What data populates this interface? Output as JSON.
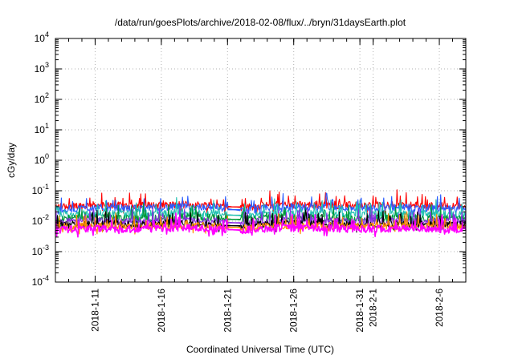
{
  "chart_data": {
    "type": "line",
    "title": "/data/run/goesPlots/archive/2018-02-08/flux/../bryn/31daysEarth.plot",
    "xlabel": "Coordinated Universal Time (UTC)",
    "ylabel": "cGy/day",
    "yscale": "log",
    "ylim": [
      0.0001,
      10000
    ],
    "xlim": [
      "2018-01-08",
      "2018-02-08"
    ],
    "grid": true,
    "y_ticks": [
      {
        "base": "10",
        "exp": "-4",
        "value": 0.0001
      },
      {
        "base": "10",
        "exp": "-3",
        "value": 0.001
      },
      {
        "base": "10",
        "exp": "-2",
        "value": 0.01
      },
      {
        "base": "10",
        "exp": "-1",
        "value": 0.1
      },
      {
        "base": "10",
        "exp": "0",
        "value": 1
      },
      {
        "base": "10",
        "exp": "1",
        "value": 10
      },
      {
        "base": "10",
        "exp": "2",
        "value": 100
      },
      {
        "base": "10",
        "exp": "3",
        "value": 1000
      },
      {
        "base": "10",
        "exp": "4",
        "value": 10000
      }
    ],
    "x_ticks": [
      {
        "label": "2018-1-11",
        "date": "2018-01-11"
      },
      {
        "label": "2018-1-16",
        "date": "2018-01-16"
      },
      {
        "label": "2018-1-21",
        "date": "2018-01-21"
      },
      {
        "label": "2018-1-26",
        "date": "2018-01-26"
      },
      {
        "label": "2018-1-31",
        "date": "2018-01-31"
      },
      {
        "label": "2018-2-1",
        "date": "2018-02-01"
      },
      {
        "label": "2018-2-6",
        "date": "2018-02-06"
      }
    ],
    "data_gap": [
      "2018-01-21",
      "2018-01-22"
    ],
    "series": [
      {
        "color": "#ff0000",
        "x": [
          "2018-01-08",
          "2018-01-11",
          "2018-01-14",
          "2018-01-17",
          "2018-01-20",
          "2018-01-22",
          "2018-01-25",
          "2018-01-28",
          "2018-01-31",
          "2018-02-03",
          "2018-02-06",
          "2018-02-08"
        ],
        "y": [
          0.03,
          0.034,
          0.032,
          0.035,
          0.034,
          0.028,
          0.036,
          0.034,
          0.033,
          0.034,
          0.032,
          0.03
        ]
      },
      {
        "color": "#2a5cff",
        "x": [
          "2018-01-08",
          "2018-01-11",
          "2018-01-14",
          "2018-01-17",
          "2018-01-20",
          "2018-01-22",
          "2018-01-25",
          "2018-01-28",
          "2018-01-31",
          "2018-02-03",
          "2018-02-06",
          "2018-02-08"
        ],
        "y": [
          0.024,
          0.028,
          0.026,
          0.029,
          0.03,
          0.022,
          0.03,
          0.028,
          0.027,
          0.028,
          0.026,
          0.024
        ]
      },
      {
        "color": "#20c0b0",
        "x": [
          "2018-01-08",
          "2018-01-11",
          "2018-01-14",
          "2018-01-17",
          "2018-01-20",
          "2018-01-22",
          "2018-01-25",
          "2018-01-28",
          "2018-01-31",
          "2018-02-03",
          "2018-02-06",
          "2018-02-08"
        ],
        "y": [
          0.016,
          0.018,
          0.017,
          0.019,
          0.018,
          0.015,
          0.019,
          0.018,
          0.017,
          0.018,
          0.017,
          0.016
        ]
      },
      {
        "color": "#009a3a",
        "x": [
          "2018-01-08",
          "2018-01-11",
          "2018-01-14",
          "2018-01-17",
          "2018-01-20",
          "2018-01-22",
          "2018-01-25",
          "2018-01-28",
          "2018-01-31",
          "2018-02-03",
          "2018-02-06",
          "2018-02-08"
        ],
        "y": [
          0.012,
          0.013,
          0.012,
          0.014,
          0.013,
          0.011,
          0.014,
          0.013,
          0.012,
          0.013,
          0.012,
          0.012
        ]
      },
      {
        "color": "#8a2be2",
        "x": [
          "2018-01-08",
          "2018-01-11",
          "2018-01-14",
          "2018-01-17",
          "2018-01-20",
          "2018-01-22",
          "2018-01-25",
          "2018-01-28",
          "2018-01-31",
          "2018-02-03",
          "2018-02-06",
          "2018-02-08"
        ],
        "y": [
          0.0095,
          0.01,
          0.0098,
          0.011,
          0.01,
          0.0085,
          0.011,
          0.01,
          0.0098,
          0.01,
          0.0095,
          0.0094
        ]
      },
      {
        "color": "#000000",
        "x": [
          "2018-01-08",
          "2018-01-11",
          "2018-01-14",
          "2018-01-17",
          "2018-01-20",
          "2018-01-22",
          "2018-01-25",
          "2018-01-28",
          "2018-01-31",
          "2018-02-03",
          "2018-02-06",
          "2018-02-08"
        ],
        "y": [
          0.0075,
          0.0082,
          0.0078,
          0.0085,
          0.008,
          0.0068,
          0.0085,
          0.008,
          0.0078,
          0.008,
          0.0076,
          0.0075
        ]
      },
      {
        "color": "#ff8c00",
        "x": [
          "2018-01-08",
          "2018-01-11",
          "2018-01-14",
          "2018-01-17",
          "2018-01-20",
          "2018-01-22",
          "2018-01-25",
          "2018-01-28",
          "2018-01-31",
          "2018-02-03",
          "2018-02-06",
          "2018-02-08"
        ],
        "y": [
          0.0065,
          0.007,
          0.0068,
          0.0072,
          0.007,
          0.006,
          0.0072,
          0.007,
          0.0068,
          0.007,
          0.0066,
          0.0065
        ]
      },
      {
        "color": "#ff00ff",
        "x": [
          "2018-01-08",
          "2018-01-11",
          "2018-01-14",
          "2018-01-17",
          "2018-01-20",
          "2018-01-22",
          "2018-01-25",
          "2018-01-28",
          "2018-01-31",
          "2018-02-03",
          "2018-02-06",
          "2018-02-08"
        ],
        "y": [
          0.0052,
          0.0058,
          0.0055,
          0.006,
          0.0058,
          0.005,
          0.006,
          0.0058,
          0.0055,
          0.0058,
          0.0054,
          0.0052
        ]
      }
    ]
  }
}
